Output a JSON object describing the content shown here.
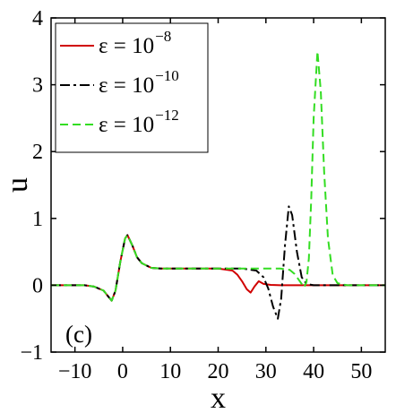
{
  "chart_data": {
    "type": "line",
    "xlabel": "x",
    "ylabel": "u",
    "xlim": [
      -15,
      55
    ],
    "ylim": [
      -1,
      4
    ],
    "xticks": [
      -10,
      0,
      10,
      20,
      30,
      40,
      50
    ],
    "yticks": [
      -1,
      0,
      1,
      2,
      3,
      4
    ],
    "xtick_labels": [
      "−10",
      "0",
      "10",
      "20",
      "30",
      "40",
      "50"
    ],
    "ytick_labels": [
      "−1",
      "0",
      "1",
      "2",
      "3",
      "4"
    ],
    "panel_label": "(c)",
    "legend_position": "top-left",
    "series": [
      {
        "name": "ε = 10",
        "name_exponent": "−8",
        "color": "#d00000",
        "dash": "solid",
        "x": [
          -15,
          -8,
          -6,
          -4,
          -3,
          -2.3,
          -1.5,
          -0.5,
          0.5,
          1,
          2,
          3,
          4,
          6,
          8,
          10,
          15,
          20,
          23,
          24,
          25,
          26,
          26.8,
          27.6,
          28.5,
          29.5,
          31,
          33,
          35,
          40,
          45,
          55
        ],
        "y": [
          0,
          0,
          -0.02,
          -0.08,
          -0.17,
          -0.23,
          -0.08,
          0.35,
          0.7,
          0.75,
          0.6,
          0.42,
          0.33,
          0.26,
          0.25,
          0.25,
          0.25,
          0.25,
          0.22,
          0.16,
          0.06,
          -0.06,
          -0.11,
          -0.02,
          0.06,
          0.02,
          0.005,
          0,
          0,
          0,
          0,
          0
        ]
      },
      {
        "name": "ε = 10",
        "name_exponent": "−10",
        "color": "#000000",
        "dash": "dashdot",
        "x": [
          -15,
          -8,
          -6,
          -4,
          -3,
          -2.3,
          -1.5,
          -0.5,
          0.5,
          1,
          2,
          3,
          4,
          6,
          8,
          10,
          15,
          20,
          25,
          28,
          29.5,
          30.5,
          31.5,
          32.5,
          33.2,
          34,
          34.8,
          35.5,
          36.5,
          37.5,
          38.5,
          40,
          45,
          55
        ],
        "y": [
          0,
          0,
          -0.02,
          -0.08,
          -0.17,
          -0.23,
          -0.08,
          0.35,
          0.7,
          0.75,
          0.6,
          0.42,
          0.33,
          0.26,
          0.25,
          0.25,
          0.25,
          0.25,
          0.25,
          0.22,
          0.12,
          -0.05,
          -0.32,
          -0.5,
          -0.2,
          0.6,
          1.18,
          1.05,
          0.5,
          0.12,
          0.02,
          0,
          0,
          0
        ]
      },
      {
        "name": "ε = 10",
        "name_exponent": "−12",
        "color": "#33dd22",
        "dash": "dashed",
        "x": [
          -15,
          -8,
          -6,
          -4,
          -3,
          -2.3,
          -1.5,
          -0.5,
          0.5,
          1,
          2,
          3,
          4,
          6,
          8,
          10,
          15,
          20,
          25,
          30,
          33,
          35,
          36,
          37,
          38,
          38.5,
          39,
          39.5,
          40,
          40.8,
          41.5,
          42.2,
          43,
          44,
          45,
          47,
          55
        ],
        "y": [
          0,
          0,
          -0.02,
          -0.08,
          -0.17,
          -0.23,
          -0.08,
          0.35,
          0.7,
          0.75,
          0.6,
          0.42,
          0.33,
          0.26,
          0.25,
          0.25,
          0.25,
          0.25,
          0.25,
          0.25,
          0.25,
          0.23,
          0.17,
          0.07,
          -0.03,
          0.05,
          0.4,
          1.3,
          2.5,
          3.5,
          2.9,
          1.7,
          0.7,
          0.15,
          0.03,
          0,
          0
        ]
      }
    ]
  }
}
